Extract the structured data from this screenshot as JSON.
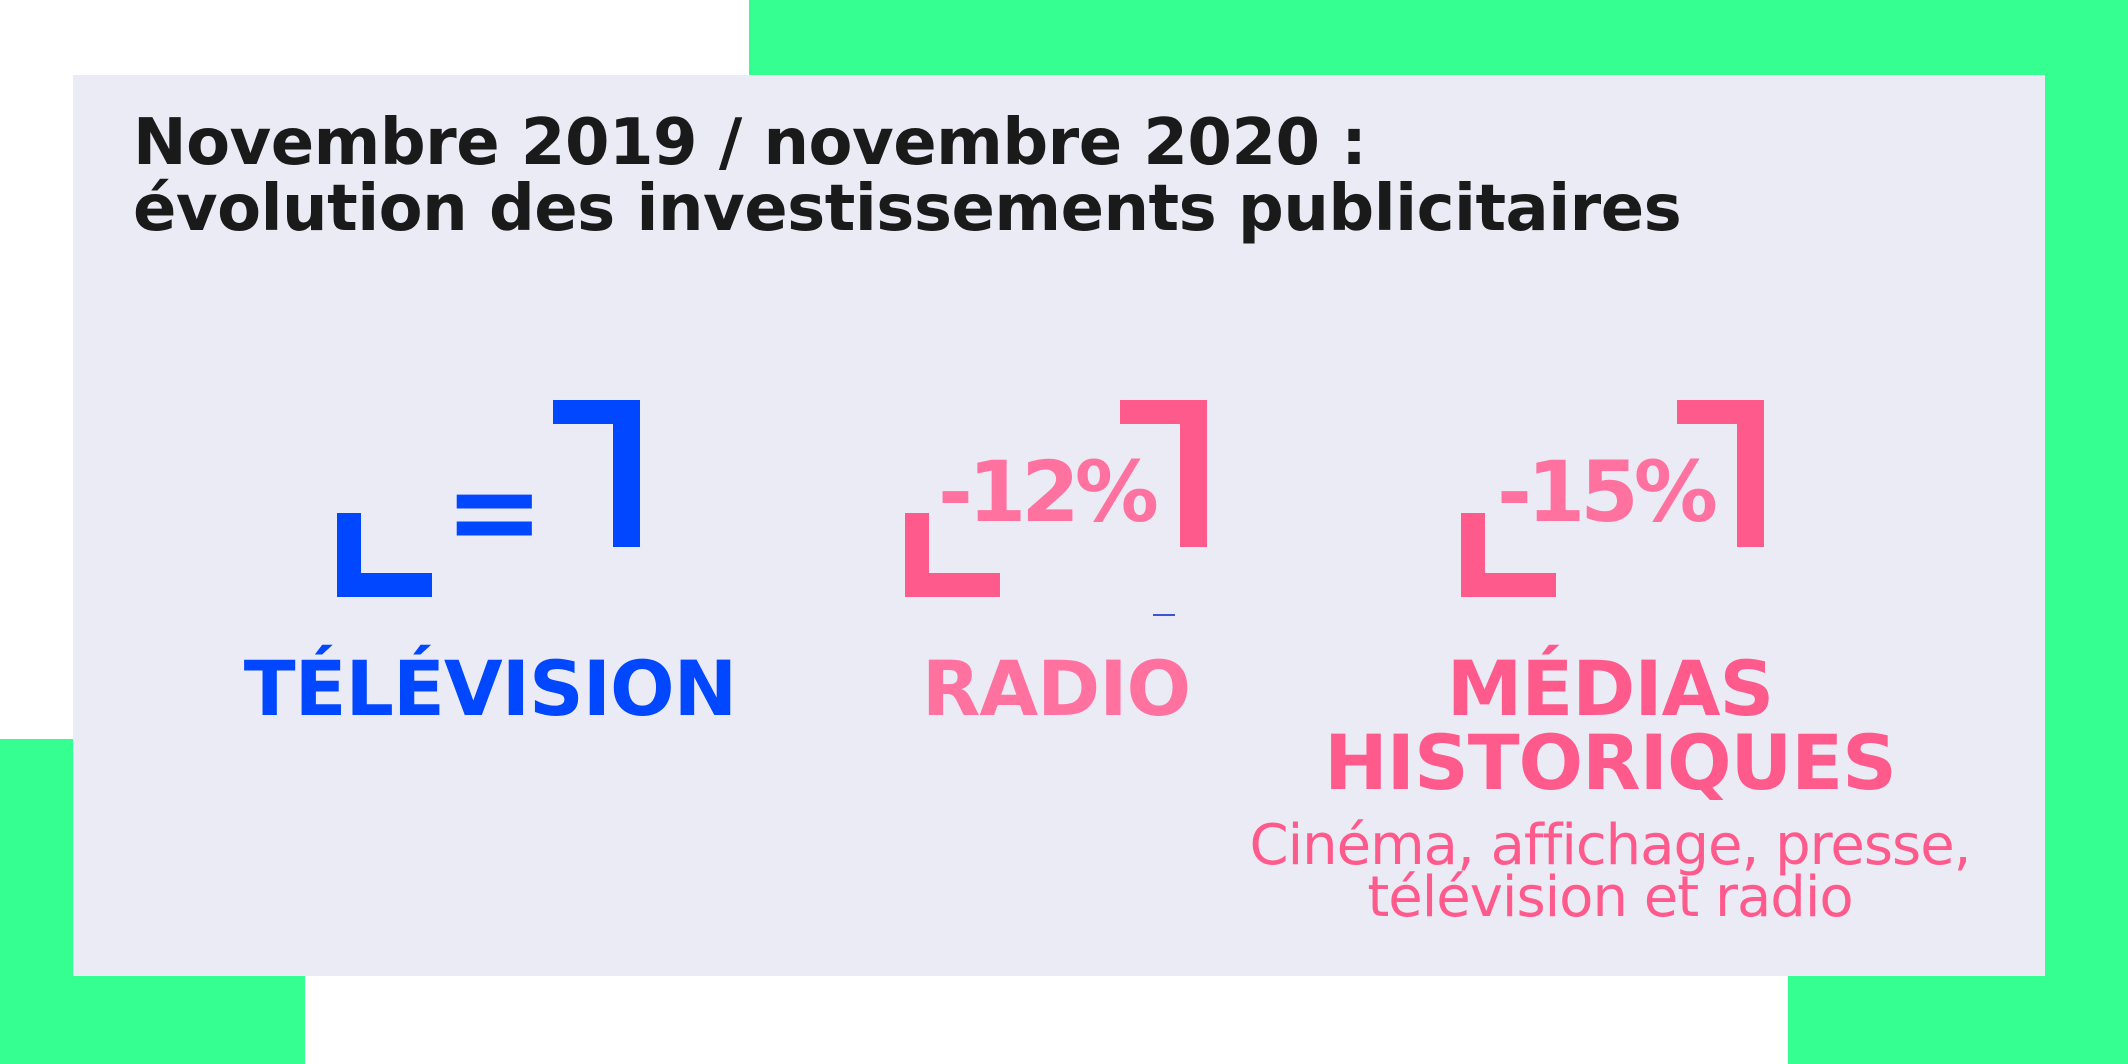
{
  "colors": {
    "accent_green": "#36ff91",
    "panel": "#ebebf5",
    "title": "#1a1a1a",
    "television": "#0047ff",
    "pink": "#ff5a8c"
  },
  "title": {
    "line1": "Novembre 2019 / novembre 2020 :",
    "line2": "évolution des investissements publicitaires"
  },
  "stats": [
    {
      "value": "=",
      "label_line1": "TÉLÉVISION"
    },
    {
      "value": "-12%",
      "label_line1": "RADIO"
    },
    {
      "value": "-15%",
      "label_line1": "MÉDIAS",
      "label_line2": "HISTORIQUES",
      "sub_line1": "Cinéma, affichage, presse,",
      "sub_line2": "télévision et radio"
    }
  ]
}
